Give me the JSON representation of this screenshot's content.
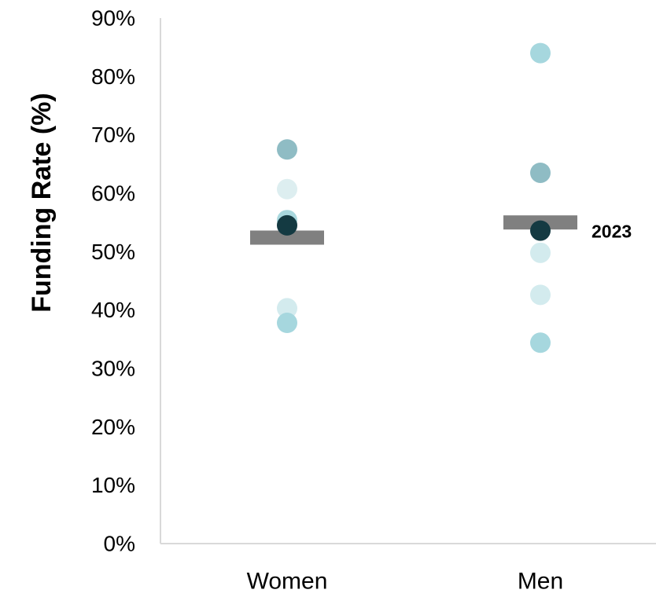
{
  "chart_data": {
    "type": "scatter",
    "title": "",
    "xlabel": "",
    "ylabel": "Funding Rate (%)",
    "ylim": [
      0,
      90
    ],
    "y_ticks": [
      "0%",
      "10%",
      "20%",
      "30%",
      "40%",
      "50%",
      "60%",
      "70%",
      "80%",
      "90%"
    ],
    "categories": [
      "Women",
      "Men"
    ],
    "grid": false,
    "legend": "none",
    "points": [
      {
        "category": "Women",
        "y": 67.5,
        "color": "#8FBCC4"
      },
      {
        "category": "Women",
        "y": 60.7,
        "color": "#DDEEF0"
      },
      {
        "category": "Women",
        "y": 55.4,
        "color": "#A9D8DE"
      },
      {
        "category": "Women",
        "y": 40.3,
        "color": "#D3EBEE"
      },
      {
        "category": "Women",
        "y": 37.8,
        "color": "#A6D7DE"
      },
      {
        "category": "Women",
        "y": 54.5,
        "color": "#143A42"
      },
      {
        "category": "Men",
        "y": 84.0,
        "color": "#A6D7DE"
      },
      {
        "category": "Men",
        "y": 63.5,
        "color": "#8FBCC4"
      },
      {
        "category": "Men",
        "y": 49.8,
        "color": "#D3EBEE"
      },
      {
        "category": "Men",
        "y": 42.6,
        "color": "#D3EBEE"
      },
      {
        "category": "Men",
        "y": 34.4,
        "color": "#A6D7DE"
      },
      {
        "category": "Men",
        "y": 53.6,
        "color": "#143A42"
      }
    ],
    "averages": [
      {
        "category": "Women",
        "y": 52.4,
        "color": "#808080"
      },
      {
        "category": "Men",
        "y": 55.0,
        "color": "#808080"
      }
    ],
    "annotations": [
      {
        "category": "Men",
        "y": 53.6,
        "text": "2023"
      }
    ],
    "axis_color": "#D9D9D9"
  }
}
